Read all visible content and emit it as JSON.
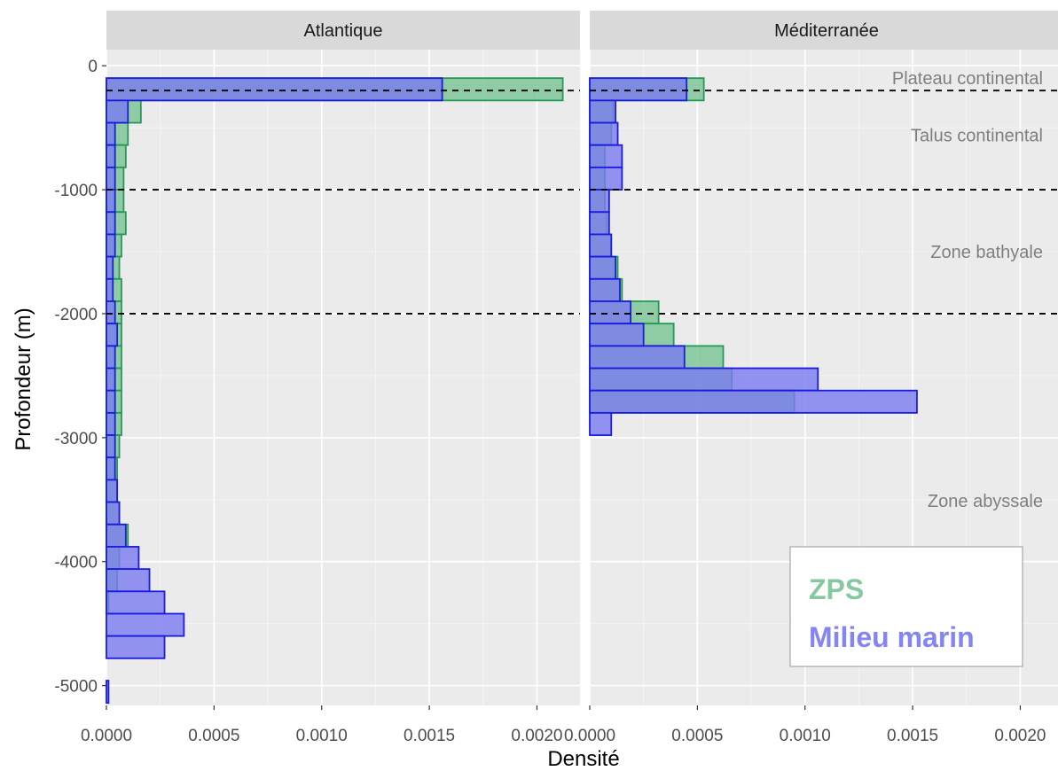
{
  "chart_data": {
    "type": "histogram",
    "orientation": "horizontal",
    "xlabel": "Densité",
    "ylabel": "Profondeur (m)",
    "xlim": [
      0,
      0.0022
    ],
    "ylim": [
      -5160,
      130
    ],
    "x_ticks": [
      0,
      0.0005,
      0.001,
      0.0015,
      0.002
    ],
    "x_tick_labels": [
      "0.0000",
      "0.0005",
      "0.0010",
      "0.0015",
      "0.0020"
    ],
    "y_ticks": [
      0,
      -1000,
      -2000,
      -3000,
      -4000,
      -5000
    ],
    "y_tick_labels": [
      "0",
      "-1000",
      "-2000",
      "-3000",
      "-4000",
      "-5000"
    ],
    "grid": true,
    "depth_zones": {
      "lines": [
        -200,
        -1000,
        -2000
      ],
      "labels": [
        {
          "text": "Plateau continental",
          "depth": -100
        },
        {
          "text": "Talus continental",
          "depth": -560
        },
        {
          "text": "Zone bathyale",
          "depth": -1500
        },
        {
          "text": "Zone abyssale",
          "depth": -3510
        }
      ]
    },
    "series_colors": {
      "zps": "#7fc79a",
      "marin": "#7b7bf0",
      "zps_edge": "#239b56",
      "marin_edge": "#1c1ce0"
    },
    "legend": {
      "position": "bottom-right",
      "entries": [
        {
          "label": "ZPS",
          "color": "#86c9a0"
        },
        {
          "label": "Milieu marin",
          "color": "#8484f2"
        }
      ]
    },
    "bin_width": 180,
    "bin_starts": [
      -280,
      -460,
      -640,
      -820,
      -1000,
      -1180,
      -1360,
      -1540,
      -1720,
      -1900,
      -2080,
      -2260,
      -2440,
      -2620,
      -2800,
      -2980,
      -3160,
      -3340,
      -3520,
      -3700,
      -3880,
      -4060,
      -4240,
      -4420,
      -4600,
      -4780,
      -4960,
      -5140
    ],
    "panels": [
      {
        "name": "Atlantique",
        "series": [
          {
            "name": "ZPS",
            "values": [
              0.00212,
              0.00016,
              0.0001,
              9e-05,
              8e-05,
              8e-05,
              9e-05,
              7e-05,
              6e-05,
              7e-05,
              7e-05,
              7e-05,
              7e-05,
              7e-05,
              7e-05,
              7e-05,
              6e-05,
              5e-05,
              5e-05,
              6e-05,
              0.0001,
              6e-05,
              5e-05,
              1e-05,
              0.0,
              0.0,
              0.0,
              0.0
            ]
          },
          {
            "name": "Milieu marin",
            "values": [
              0.00156,
              0.0001,
              4e-05,
              4e-05,
              4e-05,
              4e-05,
              4e-05,
              4e-05,
              3e-05,
              3e-05,
              4e-05,
              5e-05,
              4e-05,
              4e-05,
              4e-05,
              4e-05,
              4e-05,
              4e-05,
              5e-05,
              6e-05,
              9e-05,
              0.00015,
              0.0002,
              0.00027,
              0.00036,
              0.00027,
              0.0,
              1e-05
            ]
          }
        ]
      },
      {
        "name": "Méditerranée",
        "series": [
          {
            "name": "ZPS",
            "values": [
              0.00053,
              0.00011,
              0.0001,
              7e-05,
              7e-05,
              7e-05,
              8e-05,
              0.0001,
              0.00013,
              0.00015,
              0.00032,
              0.00039,
              0.00062,
              0.00066,
              0.00095,
              0.0,
              0.0,
              0.0,
              0.0,
              0.0,
              0.0,
              0.0,
              0.0,
              0.0,
              0.0,
              0.0,
              0.0,
              0.0
            ]
          },
          {
            "name": "Milieu marin",
            "values": [
              0.00045,
              0.00012,
              0.00013,
              0.00015,
              0.00015,
              9e-05,
              9e-05,
              0.0001,
              0.00012,
              0.00014,
              0.00019,
              0.00025,
              0.00044,
              0.00106,
              0.00152,
              0.0001,
              0.0,
              0.0,
              0.0,
              0.0,
              0.0,
              0.0,
              0.0,
              0.0,
              0.0,
              0.0,
              0.0,
              0.0
            ]
          }
        ]
      }
    ]
  }
}
